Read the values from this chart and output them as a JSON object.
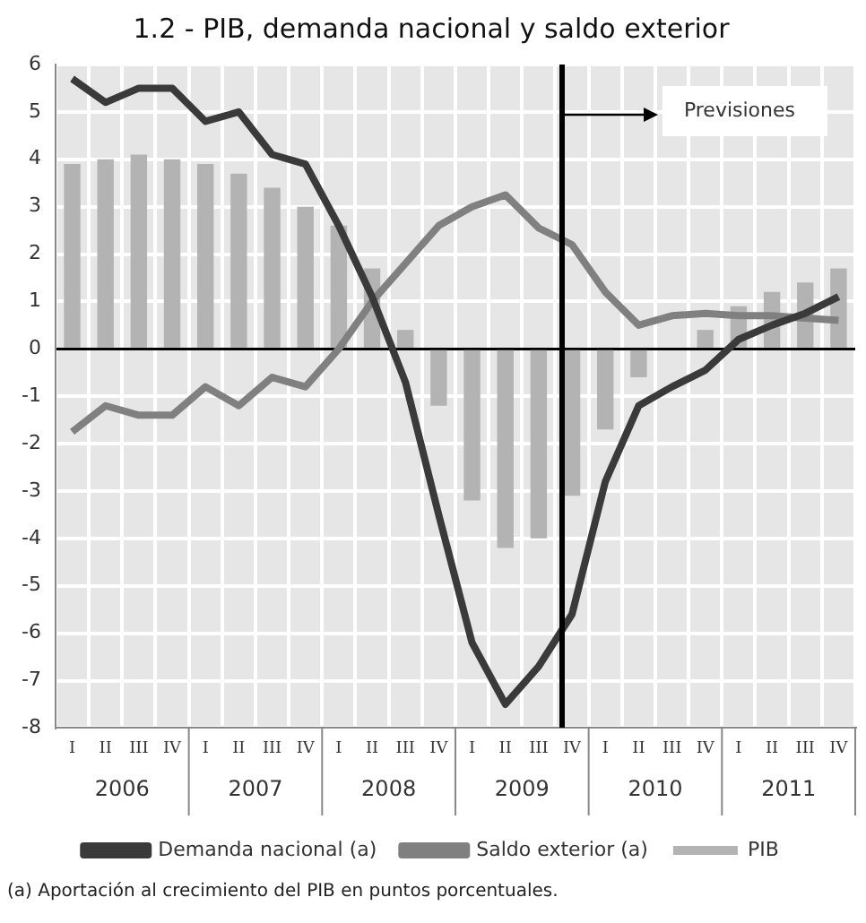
{
  "chart_data": {
    "type": "bar",
    "title": "1.2 - PIB, demanda nacional y saldo exterior",
    "categories": [
      "I",
      "II",
      "III",
      "IV",
      "I",
      "II",
      "III",
      "IV",
      "I",
      "II",
      "III",
      "IV",
      "I",
      "II",
      "III",
      "IV",
      "I",
      "II",
      "III",
      "IV",
      "I",
      "II",
      "III",
      "IV"
    ],
    "series": [
      {
        "name": "PIB",
        "color": "#b3b3b3",
        "values": [
          3.9,
          4.0,
          4.1,
          4.0,
          3.9,
          3.7,
          3.4,
          3.0,
          2.6,
          1.7,
          0.4,
          -1.2,
          -3.2,
          -4.2,
          -4.0,
          -3.1,
          -1.7,
          -0.6,
          0.0,
          0.4,
          0.9,
          1.2,
          1.4,
          1.7
        ]
      },
      {
        "name": "Demanda nacional (a)",
        "type": "line",
        "color": "#3a3a3a",
        "values": [
          5.7,
          5.2,
          5.5,
          5.5,
          4.8,
          5.0,
          4.1,
          3.9,
          2.6,
          1.1,
          -0.7,
          -3.5,
          -6.2,
          -7.5,
          -6.7,
          -5.6,
          -2.8,
          -1.2,
          -0.8,
          -0.45,
          0.2,
          0.5,
          0.75,
          1.1
        ]
      },
      {
        "name": "Saldo exterior (a)",
        "type": "line",
        "color": "#808080",
        "values": [
          -1.75,
          -1.2,
          -1.4,
          -1.4,
          -0.8,
          -1.2,
          -0.6,
          -0.8,
          0.0,
          1.0,
          1.8,
          2.6,
          3.0,
          3.25,
          2.55,
          2.2,
          1.2,
          0.5,
          0.7,
          0.75,
          0.7,
          0.7,
          0.65,
          0.6
        ]
      }
    ],
    "ylim": [
      -8,
      6
    ],
    "yticks": [
      -8,
      -7,
      -6,
      -5,
      -4,
      -3,
      -2,
      -1,
      0,
      1,
      2,
      3,
      4,
      5,
      6
    ],
    "grid": true,
    "legend": "bottom",
    "annotations": [
      "2006",
      "2007",
      "2008",
      "2009",
      "2010",
      "2011",
      "Previsiones",
      "(a) Aportación al crecimiento del PIB en puntos porcentuales."
    ]
  }
}
